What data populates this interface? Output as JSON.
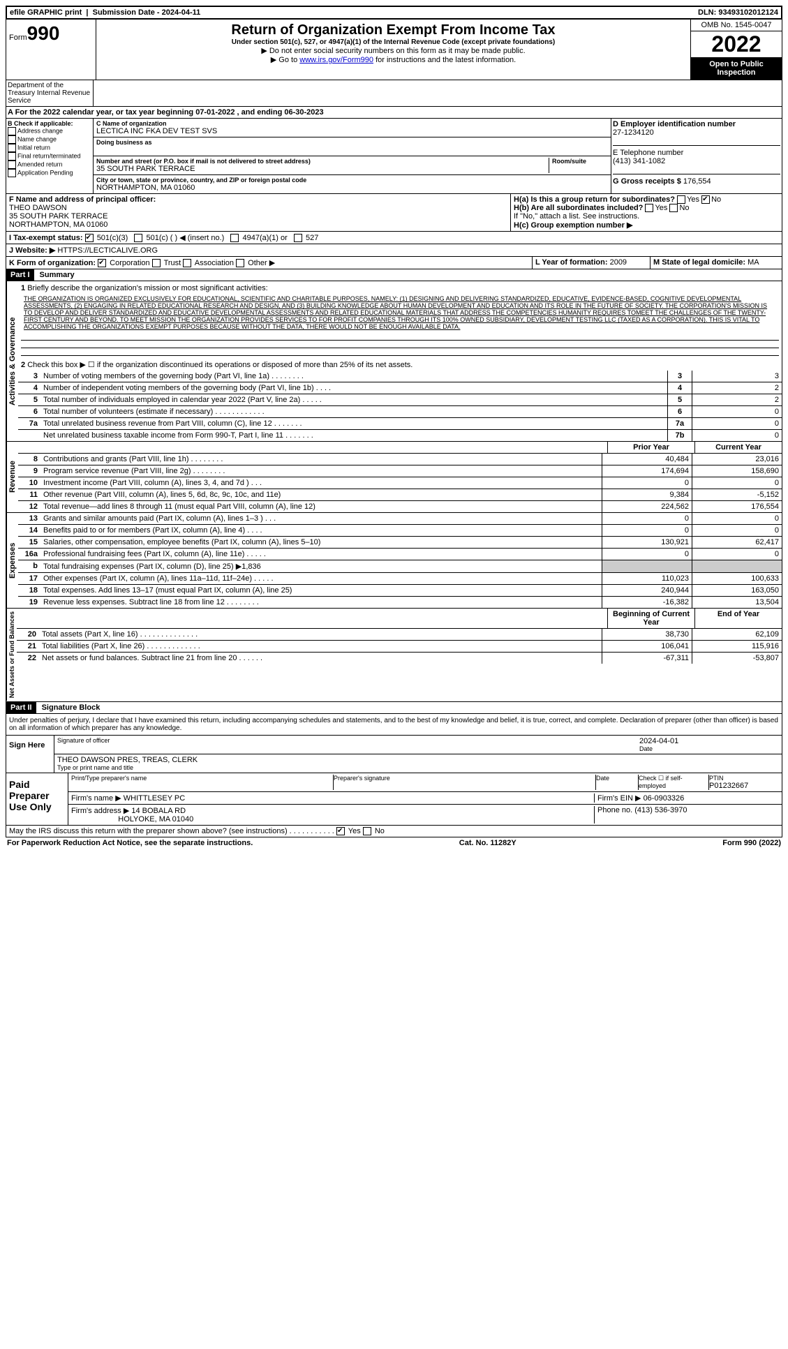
{
  "top": {
    "efile": "efile GRAPHIC print",
    "submission": "Submission Date - 2024-04-11",
    "dln": "DLN: 93493102012124"
  },
  "header": {
    "form_prefix": "Form",
    "form_num": "990",
    "title": "Return of Organization Exempt From Income Tax",
    "subtitle": "Under section 501(c), 527, or 4947(a)(1) of the Internal Revenue Code (except private foundations)",
    "note1": "▶ Do not enter social security numbers on this form as it may be made public.",
    "note2_prefix": "▶ Go to ",
    "note2_link": "www.irs.gov/Form990",
    "note2_suffix": " for instructions and the latest information.",
    "omb": "OMB No. 1545-0047",
    "year": "2022",
    "open": "Open to Public Inspection",
    "dept": "Department of the Treasury Internal Revenue Service"
  },
  "a": {
    "text": "A For the 2022 calendar year, or tax year beginning 07-01-2022    , and ending 06-30-2023"
  },
  "b": {
    "label": "B Check if applicable:",
    "opts": [
      "Address change",
      "Name change",
      "Initial return",
      "Final return/terminated",
      "Amended return",
      "Application Pending"
    ]
  },
  "c": {
    "name_label": "C Name of organization",
    "name": "LECTICA INC FKA DEV TEST SVS",
    "dba_label": "Doing business as",
    "street_label": "Number and street (or P.O. box if mail is not delivered to street address)",
    "street": "35 SOUTH PARK TERRACE",
    "room_label": "Room/suite",
    "city_label": "City or town, state or province, country, and ZIP or foreign postal code",
    "city": "NORTHAMPTON, MA  01060"
  },
  "d": {
    "label": "D Employer identification number",
    "value": "27-1234120"
  },
  "e": {
    "label": "E Telephone number",
    "value": "(413) 341-1082"
  },
  "g": {
    "label": "G Gross receipts $",
    "value": "176,554"
  },
  "f": {
    "label": "F  Name and address of principal officer:",
    "name": "THEO DAWSON",
    "addr1": "35 SOUTH PARK TERRACE",
    "addr2": "NORTHAMPTON, MA  01060"
  },
  "h": {
    "a": "H(a)  Is this a group return for subordinates?",
    "b": "H(b)  Are all subordinates included?",
    "note": "If \"No,\" attach a list. See instructions.",
    "c": "H(c)  Group exemption number ▶"
  },
  "i": {
    "label": "I   Tax-exempt status:",
    "o1": "501(c)(3)",
    "o2": "501(c) (   ) ◀ (insert no.)",
    "o3": "4947(a)(1) or",
    "o4": "527"
  },
  "j": {
    "label": "J  Website: ▶",
    "value": "HTTPS://LECTICALIVE.ORG"
  },
  "k": {
    "label": "K Form of organization:",
    "opts": [
      "Corporation",
      "Trust",
      "Association",
      "Other ▶"
    ]
  },
  "l": {
    "label": "L Year of formation:",
    "value": "2009"
  },
  "m": {
    "label": "M State of legal domicile:",
    "value": "MA"
  },
  "part1": {
    "header": "Part I",
    "title": "Summary",
    "side1": "Activities & Governance",
    "side2": "Revenue",
    "side3": "Expenses",
    "side4": "Net Assets or Fund Balances",
    "l1_label": "Briefly describe the organization's mission or most significant activities:",
    "mission": "THE ORGANIZATION IS ORGANIZED EXCLUSIVELY FOR EDUCATIONAL, SCIENTIFIC AND CHARITABLE PURPOSES, NAMELY: (1) DESIGNING AND DELIVERING STANDARDIZED, EDUCATIVE, EVIDENCE-BASED, COGNITIVE DEVELOPMENTAL ASSESSMENTS, (2) ENGAGING IN RELATED EDUCATIONAL RESEARCH AND DESIGN, AND (3) BUILDING KNOWLEDGE ABOUT HUMAN DEVELOPMENT AND EDUCATION AND ITS ROLE IN THE FUTURE OF SOCIETY. THE CORPORATION'S MISSION IS TO DEVELOP AND DELIVER STANDARDIZED AND EDUCATIVE DEVELOPMENTAL ASSESSMENTS AND RELATED EDUCATIONAL MATERIALS THAT ADDRESS THE COMPETENCIES HUMANITY REQUIRES TOMEET THE CHALLENGES OF THE TWENTY-FIRST CENTURY AND BEYOND. TO MEET MISSION THE ORGANIZATION PROVIDES SERVICES TO FOR PROFIT COMPANIES THROUGH ITS 100% OWNED SUBSIDIARY, DEVELOPMENT TESTING LLC (TAXED AS A CORPORATION). THIS IS VITAL TO ACCOMPLISHING THE ORGANIZATIONS EXEMPT PURPOSES BECAUSE WITHOUT THE DATA, THERE WOULD NOT BE ENOUGH AVAILABLE DATA.",
    "l2": "Check this box ▶ ☐ if the organization discontinued its operations or disposed of more than 25% of its net assets.",
    "lines_gov": [
      {
        "n": "3",
        "t": "Number of voting members of the governing body (Part VI, line 1a)   .   .   .   .   .   .   .   .",
        "b": "3",
        "v": "3"
      },
      {
        "n": "4",
        "t": "Number of independent voting members of the governing body (Part VI, line 1b)    .   .   .   .",
        "b": "4",
        "v": "2"
      },
      {
        "n": "5",
        "t": "Total number of individuals employed in calendar year 2022 (Part V, line 2a)   .   .   .   .   .",
        "b": "5",
        "v": "2"
      },
      {
        "n": "6",
        "t": "Total number of volunteers (estimate if necessary)   .   .   .   .   .   .   .   .   .   .   .   .",
        "b": "6",
        "v": "0"
      },
      {
        "n": "7a",
        "t": "Total unrelated business revenue from Part VIII, column (C), line 12   .   .   .   .   .   .   .",
        "b": "7a",
        "v": "0"
      },
      {
        "n": "",
        "t": "Net unrelated business taxable income from Form 990-T, Part I, line 11   .   .   .   .   .   .   .",
        "b": "7b",
        "v": "0"
      }
    ],
    "prior_year": "Prior Year",
    "current_year": "Current Year",
    "lines_rev": [
      {
        "n": "8",
        "t": "Contributions and grants (Part VIII, line 1h)   .   .   .   .   .   .   .   .",
        "p": "40,484",
        "c": "23,016"
      },
      {
        "n": "9",
        "t": "Program service revenue (Part VIII, line 2g)   .   .   .   .   .   .   .   .",
        "p": "174,694",
        "c": "158,690"
      },
      {
        "n": "10",
        "t": "Investment income (Part VIII, column (A), lines 3, 4, and 7d )    .   .   .",
        "p": "0",
        "c": "0"
      },
      {
        "n": "11",
        "t": "Other revenue (Part VIII, column (A), lines 5, 6d, 8c, 9c, 10c, and 11e)",
        "p": "9,384",
        "c": "-5,152"
      },
      {
        "n": "12",
        "t": "Total revenue—add lines 8 through 11 (must equal Part VIII, column (A), line 12)",
        "p": "224,562",
        "c": "176,554"
      }
    ],
    "lines_exp": [
      {
        "n": "13",
        "t": "Grants and similar amounts paid (Part IX, column (A), lines 1–3 )   .   .   .",
        "p": "0",
        "c": "0"
      },
      {
        "n": "14",
        "t": "Benefits paid to or for members (Part IX, column (A), line 4)   .   .   .   .",
        "p": "0",
        "c": "0"
      },
      {
        "n": "15",
        "t": "Salaries, other compensation, employee benefits (Part IX, column (A), lines 5–10)",
        "p": "130,921",
        "c": "62,417"
      },
      {
        "n": "16a",
        "t": "Professional fundraising fees (Part IX, column (A), line 11e)   .   .   .   .   .",
        "p": "0",
        "c": "0"
      },
      {
        "n": "b",
        "t": "Total fundraising expenses (Part IX, column (D), line 25) ▶1,836",
        "p": "",
        "c": "",
        "shaded": true
      },
      {
        "n": "17",
        "t": "Other expenses (Part IX, column (A), lines 11a–11d, 11f–24e)   .   .   .   .   .",
        "p": "110,023",
        "c": "100,633"
      },
      {
        "n": "18",
        "t": "Total expenses. Add lines 13–17 (must equal Part IX, column (A), line 25)",
        "p": "240,944",
        "c": "163,050"
      },
      {
        "n": "19",
        "t": "Revenue less expenses. Subtract line 18 from line 12   .   .   .   .   .   .   .   .",
        "p": "-16,382",
        "c": "13,504"
      }
    ],
    "begin_year": "Beginning of Current Year",
    "end_year": "End of Year",
    "lines_net": [
      {
        "n": "20",
        "t": "Total assets (Part X, line 16)   .   .   .   .   .   .   .   .   .   .   .   .   .   .",
        "p": "38,730",
        "c": "62,109"
      },
      {
        "n": "21",
        "t": "Total liabilities (Part X, line 26)   .   .   .   .   .   .   .   .   .   .   .   .   .",
        "p": "106,041",
        "c": "115,916"
      },
      {
        "n": "22",
        "t": "Net assets or fund balances. Subtract line 21 from line 20   .   .   .   .   .   .",
        "p": "-67,311",
        "c": "-53,807"
      }
    ]
  },
  "part2": {
    "header": "Part II",
    "title": "Signature Block",
    "perjury": "Under penalties of perjury, I declare that I have examined this return, including accompanying schedules and statements, and to the best of my knowledge and belief, it is true, correct, and complete. Declaration of preparer (other than officer) is based on all information of which preparer has any knowledge.",
    "sign_here": "Sign Here",
    "sig_officer": "Signature of officer",
    "date": "Date",
    "date_val": "2024-04-01",
    "officer_name": "THEO DAWSON PRES, TREAS, CLERK",
    "type_name": "Type or print name and title",
    "paid_prep": "Paid Preparer Use Only",
    "print_name": "Print/Type preparer's name",
    "prep_sig": "Preparer's signature",
    "check_self": "Check ☐ if self-employed",
    "ptin_label": "PTIN",
    "ptin": "P01232667",
    "firm_name_label": "Firm's name    ▶",
    "firm_name": "WHITTLESEY PC",
    "firm_ein_label": "Firm's EIN ▶",
    "firm_ein": "06-0903326",
    "firm_addr_label": "Firm's address ▶",
    "firm_addr1": "14 BOBALA RD",
    "firm_addr2": "HOLYOKE, MA  01040",
    "phone_label": "Phone no.",
    "phone": "(413) 536-3970",
    "discuss": "May the IRS discuss this return with the preparer shown above? (see instructions)   .   .   .   .   .   .   .   .   .   .   ."
  },
  "footer": {
    "pra": "For Paperwork Reduction Act Notice, see the separate instructions.",
    "cat": "Cat. No. 11282Y",
    "form": "Form 990 (2022)"
  }
}
